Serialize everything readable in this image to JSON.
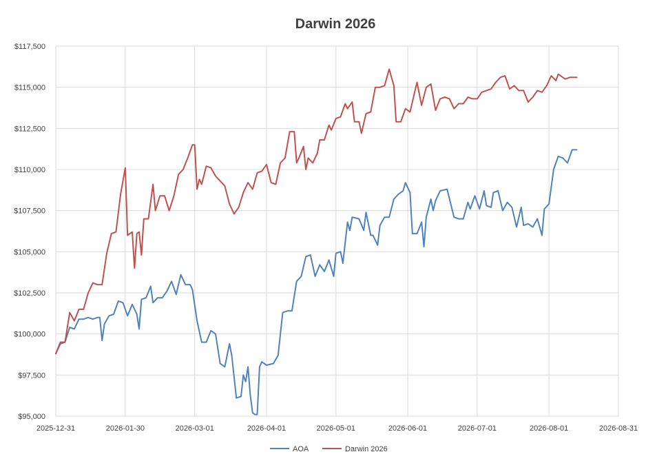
{
  "chart_data": {
    "type": "line",
    "title": "Darwin 2026",
    "xlabel": "",
    "ylabel": "",
    "x_range": [
      "2025-12-31",
      "2026-08-31"
    ],
    "ylim": [
      95000,
      117500
    ],
    "y_ticks": [
      95000,
      97500,
      100000,
      102500,
      105000,
      107500,
      110000,
      112500,
      115000,
      117500
    ],
    "y_tick_labels": [
      "$95,000",
      "$97,500",
      "$100,000",
      "$102,500",
      "$105,000",
      "$107,500",
      "$110,000",
      "$112,500",
      "$115,000",
      "$117,500"
    ],
    "x_ticks": [
      "2025-12-31",
      "2026-01-30",
      "2026-03-01",
      "2026-04-01",
      "2026-05-01",
      "2026-06-01",
      "2026-07-01",
      "2026-08-01",
      "2026-08-31"
    ],
    "x_tick_labels": [
      "2025-12-31",
      "2026-01-30",
      "2026-03-01",
      "2026-04-01",
      "2026-05-01",
      "2026-06-01",
      "2026-07-01",
      "2026-08-01",
      "2026-08-31"
    ],
    "grid": true,
    "legend_position": "bottom",
    "series": [
      {
        "name": "AOA",
        "color": "#4f81bd",
        "points": [
          [
            "2025-12-31",
            98800
          ],
          [
            "2026-01-02",
            99400
          ],
          [
            "2026-01-04",
            99500
          ],
          [
            "2026-01-06",
            100400
          ],
          [
            "2026-01-08",
            100300
          ],
          [
            "2026-01-10",
            100900
          ],
          [
            "2026-01-12",
            100900
          ],
          [
            "2026-01-14",
            101000
          ],
          [
            "2026-01-16",
            100900
          ],
          [
            "2026-01-18",
            101000
          ],
          [
            "2026-01-19",
            101000
          ],
          [
            "2026-01-20",
            99600
          ],
          [
            "2026-01-21",
            100600
          ],
          [
            "2026-01-23",
            101100
          ],
          [
            "2026-01-25",
            101200
          ],
          [
            "2026-01-27",
            102000
          ],
          [
            "2026-01-29",
            101900
          ],
          [
            "2026-01-31",
            101100
          ],
          [
            "2026-02-02",
            101800
          ],
          [
            "2026-02-04",
            101200
          ],
          [
            "2026-02-05",
            100300
          ],
          [
            "2026-02-06",
            102100
          ],
          [
            "2026-02-08",
            102200
          ],
          [
            "2026-02-10",
            102900
          ],
          [
            "2026-02-11",
            101900
          ],
          [
            "2026-02-13",
            102200
          ],
          [
            "2026-02-15",
            102200
          ],
          [
            "2026-02-17",
            102600
          ],
          [
            "2026-02-19",
            103200
          ],
          [
            "2026-02-21",
            102400
          ],
          [
            "2026-02-23",
            103600
          ],
          [
            "2026-02-25",
            103000
          ],
          [
            "2026-02-27",
            103000
          ],
          [
            "2026-02-28",
            102700
          ],
          [
            "2026-03-02",
            100800
          ],
          [
            "2026-03-04",
            99500
          ],
          [
            "2026-03-06",
            99500
          ],
          [
            "2026-03-08",
            100200
          ],
          [
            "2026-03-10",
            100000
          ],
          [
            "2026-03-12",
            98200
          ],
          [
            "2026-03-14",
            98000
          ],
          [
            "2026-03-16",
            99400
          ],
          [
            "2026-03-17",
            98700
          ],
          [
            "2026-03-19",
            96100
          ],
          [
            "2026-03-21",
            96200
          ],
          [
            "2026-03-22",
            97500
          ],
          [
            "2026-03-23",
            97100
          ],
          [
            "2026-03-24",
            98000
          ],
          [
            "2026-03-25",
            96300
          ],
          [
            "2026-03-26",
            95200
          ],
          [
            "2026-03-27",
            95100
          ],
          [
            "2026-03-28",
            95100
          ],
          [
            "2026-03-29",
            98000
          ],
          [
            "2026-03-30",
            98300
          ],
          [
            "2026-04-01",
            98100
          ],
          [
            "2026-04-04",
            98200
          ],
          [
            "2026-04-06",
            98700
          ],
          [
            "2026-04-08",
            101300
          ],
          [
            "2026-04-10",
            101400
          ],
          [
            "2026-04-12",
            101400
          ],
          [
            "2026-04-14",
            103200
          ],
          [
            "2026-04-16",
            103500
          ],
          [
            "2026-04-18",
            104700
          ],
          [
            "2026-04-20",
            104800
          ],
          [
            "2026-04-22",
            103500
          ],
          [
            "2026-04-24",
            104200
          ],
          [
            "2026-04-26",
            103800
          ],
          [
            "2026-04-28",
            104500
          ],
          [
            "2026-04-30",
            103500
          ],
          [
            "2026-05-01",
            104900
          ],
          [
            "2026-05-03",
            105000
          ],
          [
            "2026-05-04",
            104300
          ],
          [
            "2026-05-06",
            106800
          ],
          [
            "2026-05-07",
            106300
          ],
          [
            "2026-05-08",
            107100
          ],
          [
            "2026-05-11",
            107000
          ],
          [
            "2026-05-13",
            106300
          ],
          [
            "2026-05-14",
            107400
          ],
          [
            "2026-05-16",
            106000
          ],
          [
            "2026-05-17",
            106000
          ],
          [
            "2026-05-19",
            105400
          ],
          [
            "2026-05-20",
            106600
          ],
          [
            "2026-05-22",
            107100
          ],
          [
            "2026-05-24",
            107100
          ],
          [
            "2026-05-26",
            108200
          ],
          [
            "2026-05-28",
            108500
          ],
          [
            "2026-05-30",
            108700
          ],
          [
            "2026-05-31",
            109200
          ],
          [
            "2026-06-02",
            108600
          ],
          [
            "2026-06-03",
            106100
          ],
          [
            "2026-06-05",
            106100
          ],
          [
            "2026-06-07",
            106800
          ],
          [
            "2026-06-08",
            105300
          ],
          [
            "2026-06-09",
            107100
          ],
          [
            "2026-06-11",
            108200
          ],
          [
            "2026-06-12",
            107500
          ],
          [
            "2026-06-13",
            108100
          ],
          [
            "2026-06-15",
            108700
          ],
          [
            "2026-06-18",
            108800
          ],
          [
            "2026-06-21",
            107100
          ],
          [
            "2026-06-23",
            107000
          ],
          [
            "2026-06-25",
            107000
          ],
          [
            "2026-06-27",
            108000
          ],
          [
            "2026-06-28",
            107600
          ],
          [
            "2026-06-30",
            108400
          ],
          [
            "2026-07-02",
            107600
          ],
          [
            "2026-07-04",
            108700
          ],
          [
            "2026-07-05",
            107800
          ],
          [
            "2026-07-07",
            107700
          ],
          [
            "2026-07-08",
            108600
          ],
          [
            "2026-07-10",
            108700
          ],
          [
            "2026-07-12",
            107500
          ],
          [
            "2026-07-14",
            108000
          ],
          [
            "2026-07-16",
            107700
          ],
          [
            "2026-07-18",
            106500
          ],
          [
            "2026-07-20",
            107700
          ],
          [
            "2026-07-21",
            106600
          ],
          [
            "2026-07-23",
            106700
          ],
          [
            "2026-07-25",
            106500
          ],
          [
            "2026-07-27",
            107000
          ],
          [
            "2026-07-29",
            106000
          ],
          [
            "2026-07-30",
            107600
          ],
          [
            "2026-08-01",
            107900
          ],
          [
            "2026-08-03",
            110000
          ],
          [
            "2026-08-05",
            110800
          ],
          [
            "2026-08-07",
            110700
          ],
          [
            "2026-08-09",
            110400
          ],
          [
            "2026-08-11",
            111200
          ],
          [
            "2026-08-13",
            111200
          ]
        ]
      },
      {
        "name": "Darwin 2026",
        "color": "#c0504d",
        "points": [
          [
            "2025-12-31",
            98800
          ],
          [
            "2026-01-02",
            99500
          ],
          [
            "2026-01-04",
            99500
          ],
          [
            "2026-01-06",
            101300
          ],
          [
            "2026-01-08",
            100800
          ],
          [
            "2026-01-10",
            101500
          ],
          [
            "2026-01-12",
            101500
          ],
          [
            "2026-01-14",
            102500
          ],
          [
            "2026-01-16",
            103100
          ],
          [
            "2026-01-18",
            103000
          ],
          [
            "2026-01-20",
            103000
          ],
          [
            "2026-01-22",
            104900
          ],
          [
            "2026-01-24",
            106100
          ],
          [
            "2026-01-26",
            106200
          ],
          [
            "2026-01-28",
            108500
          ],
          [
            "2026-01-30",
            110100
          ],
          [
            "2026-01-31",
            106000
          ],
          [
            "2026-02-02",
            106200
          ],
          [
            "2026-02-03",
            104000
          ],
          [
            "2026-02-04",
            106100
          ],
          [
            "2026-02-05",
            106200
          ],
          [
            "2026-02-06",
            104800
          ],
          [
            "2026-02-07",
            107000
          ],
          [
            "2026-02-09",
            107000
          ],
          [
            "2026-02-11",
            109100
          ],
          [
            "2026-02-12",
            107500
          ],
          [
            "2026-02-14",
            108400
          ],
          [
            "2026-02-16",
            108400
          ],
          [
            "2026-02-18",
            107500
          ],
          [
            "2026-02-20",
            108400
          ],
          [
            "2026-02-22",
            109700
          ],
          [
            "2026-02-24",
            110000
          ],
          [
            "2026-02-26",
            110700
          ],
          [
            "2026-02-28",
            111500
          ],
          [
            "2026-03-01",
            111500
          ],
          [
            "2026-03-02",
            108800
          ],
          [
            "2026-03-03",
            109400
          ],
          [
            "2026-03-04",
            109100
          ],
          [
            "2026-03-06",
            110200
          ],
          [
            "2026-03-08",
            110100
          ],
          [
            "2026-03-10",
            109600
          ],
          [
            "2026-03-12",
            109300
          ],
          [
            "2026-03-14",
            109000
          ],
          [
            "2026-03-16",
            107900
          ],
          [
            "2026-03-18",
            107300
          ],
          [
            "2026-03-20",
            107700
          ],
          [
            "2026-03-22",
            108600
          ],
          [
            "2026-03-24",
            109200
          ],
          [
            "2026-03-26",
            108800
          ],
          [
            "2026-03-28",
            109800
          ],
          [
            "2026-03-30",
            109900
          ],
          [
            "2026-04-01",
            110300
          ],
          [
            "2026-04-03",
            109200
          ],
          [
            "2026-04-05",
            109100
          ],
          [
            "2026-04-07",
            110400
          ],
          [
            "2026-04-09",
            110700
          ],
          [
            "2026-04-11",
            112300
          ],
          [
            "2026-04-13",
            112300
          ],
          [
            "2026-04-14",
            110400
          ],
          [
            "2026-04-15",
            110700
          ],
          [
            "2026-04-17",
            111400
          ],
          [
            "2026-04-18",
            110000
          ],
          [
            "2026-04-19",
            110700
          ],
          [
            "2026-04-21",
            110400
          ],
          [
            "2026-04-23",
            111000
          ],
          [
            "2026-04-24",
            111800
          ],
          [
            "2026-04-26",
            111800
          ],
          [
            "2026-04-28",
            112700
          ],
          [
            "2026-04-29",
            112400
          ],
          [
            "2026-05-01",
            113100
          ],
          [
            "2026-05-03",
            113200
          ],
          [
            "2026-05-05",
            114000
          ],
          [
            "2026-05-06",
            113700
          ],
          [
            "2026-05-08",
            114100
          ],
          [
            "2026-05-09",
            112900
          ],
          [
            "2026-05-11",
            112900
          ],
          [
            "2026-05-12",
            112200
          ],
          [
            "2026-05-14",
            113400
          ],
          [
            "2026-05-16",
            113500
          ],
          [
            "2026-05-18",
            115000
          ],
          [
            "2026-05-20",
            115000
          ],
          [
            "2026-05-22",
            115100
          ],
          [
            "2026-05-24",
            116100
          ],
          [
            "2026-05-26",
            115100
          ],
          [
            "2026-05-27",
            112900
          ],
          [
            "2026-05-29",
            112900
          ],
          [
            "2026-05-31",
            113700
          ],
          [
            "2026-06-02",
            113500
          ],
          [
            "2026-06-04",
            114700
          ],
          [
            "2026-06-05",
            115300
          ],
          [
            "2026-06-07",
            113900
          ],
          [
            "2026-06-09",
            115000
          ],
          [
            "2026-06-11",
            115200
          ],
          [
            "2026-06-13",
            113600
          ],
          [
            "2026-06-15",
            114300
          ],
          [
            "2026-06-17",
            114400
          ],
          [
            "2026-06-19",
            114300
          ],
          [
            "2026-06-21",
            113700
          ],
          [
            "2026-06-23",
            114000
          ],
          [
            "2026-06-25",
            114000
          ],
          [
            "2026-06-27",
            114400
          ],
          [
            "2026-06-29",
            114300
          ],
          [
            "2026-07-01",
            114300
          ],
          [
            "2026-07-03",
            114700
          ],
          [
            "2026-07-05",
            114800
          ],
          [
            "2026-07-07",
            114900
          ],
          [
            "2026-07-09",
            115300
          ],
          [
            "2026-07-11",
            115600
          ],
          [
            "2026-07-13",
            115700
          ],
          [
            "2026-07-15",
            114900
          ],
          [
            "2026-07-17",
            115100
          ],
          [
            "2026-07-19",
            114800
          ],
          [
            "2026-07-21",
            114800
          ],
          [
            "2026-07-23",
            114100
          ],
          [
            "2026-07-25",
            114400
          ],
          [
            "2026-07-27",
            114800
          ],
          [
            "2026-07-29",
            114700
          ],
          [
            "2026-07-31",
            115100
          ],
          [
            "2026-08-02",
            115700
          ],
          [
            "2026-08-04",
            115400
          ],
          [
            "2026-08-05",
            115800
          ],
          [
            "2026-08-07",
            115600
          ],
          [
            "2026-08-08",
            115500
          ],
          [
            "2026-08-10",
            115600
          ],
          [
            "2026-08-13",
            115600
          ]
        ]
      }
    ]
  }
}
